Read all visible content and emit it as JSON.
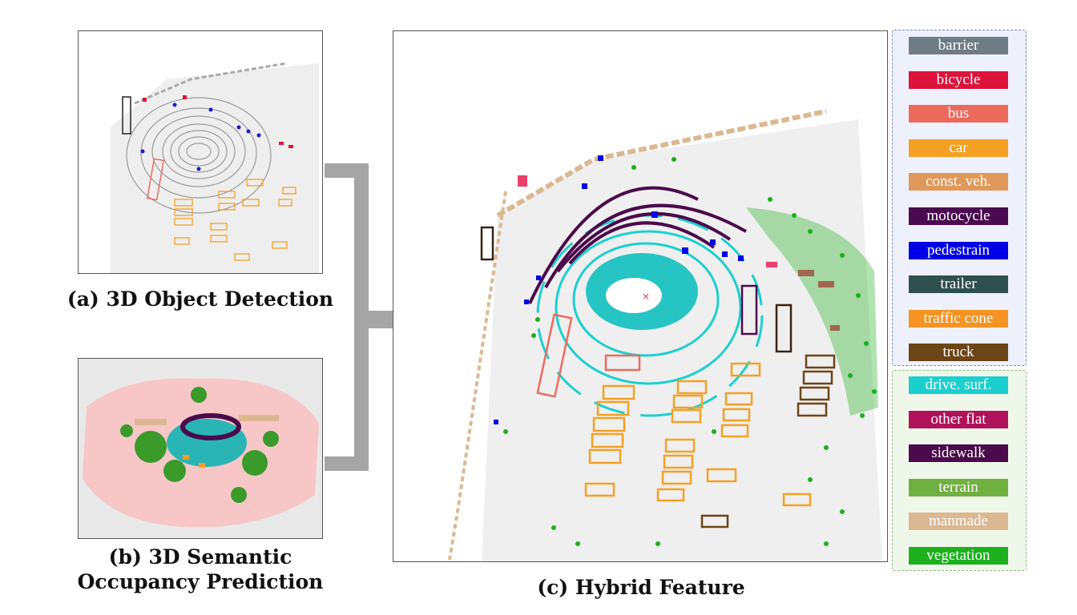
{
  "captions": {
    "a": "(a) 3D Object Detection",
    "b_line1": "(b) 3D Semantic",
    "b_line2": "Occupancy Prediction",
    "c": "(c) Hybrid Feature"
  },
  "legend": {
    "objects": [
      {
        "label": "barrier",
        "color": "#6f7c85"
      },
      {
        "label": "bicycle",
        "color": "#dc143c"
      },
      {
        "label": "bus",
        "color": "#ec6a5c"
      },
      {
        "label": "car",
        "color": "#f5a023"
      },
      {
        "label": "const. veh.",
        "color": "#e0995a"
      },
      {
        "label": "motocycle",
        "color": "#4a0a50"
      },
      {
        "label": "pedestrain",
        "color": "#0000e6"
      },
      {
        "label": "trailer",
        "color": "#2f4f4f"
      },
      {
        "label": "traffic cone",
        "color": "#f59423"
      },
      {
        "label": "truck",
        "color": "#6b4518"
      }
    ],
    "stuff": [
      {
        "label": "drive. surf.",
        "color": "#1ccfcf"
      },
      {
        "label": "other flat",
        "color": "#b0125a"
      },
      {
        "label": "sidewalk",
        "color": "#4b0a4b"
      },
      {
        "label": "terrain",
        "color": "#70b040"
      },
      {
        "label": "manmade",
        "color": "#dcb892"
      },
      {
        "label": "vegetation",
        "color": "#1cb01c"
      }
    ]
  },
  "colors": {
    "object_group_border": "#7a8db8",
    "object_group_bg": "#eef0fb",
    "stuff_group_border": "#8fbf80",
    "stuff_group_bg": "#eff7ea",
    "connector": "#a5a5a5"
  }
}
